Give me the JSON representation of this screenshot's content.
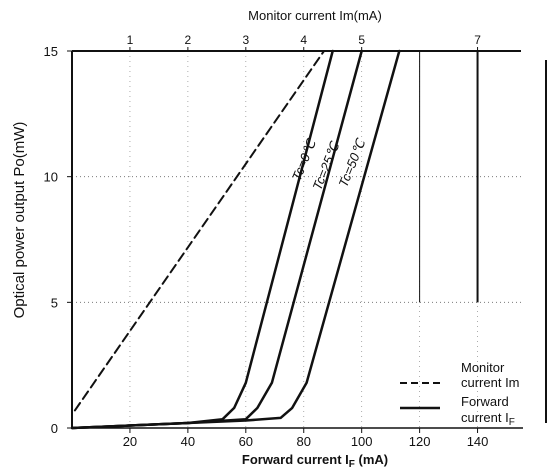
{
  "chart_data": {
    "type": "line",
    "xlabel": "Forward  current  I",
    "xlabel_sub": "F",
    "xlabel_unit": " (mA)",
    "top_label": "Monitor  current  Im(mA)",
    "ylabel": "Optical power output Po(mW)",
    "xlim": [
      0,
      155
    ],
    "ylim": [
      0,
      15
    ],
    "x_ticks": [
      20,
      40,
      60,
      80,
      100,
      120,
      140
    ],
    "y_ticks": [
      0,
      5,
      10,
      15
    ],
    "top_ticks": [
      {
        "label": "1",
        "x": 20
      },
      {
        "label": "2",
        "x": 40
      },
      {
        "label": "3",
        "x": 60
      },
      {
        "label": "4",
        "x": 80
      },
      {
        "label": "5",
        "x": 100
      },
      {
        "label": "7",
        "x": 140
      }
    ],
    "grid": true,
    "series": [
      {
        "name": "Tc=0℃",
        "style": "solid",
        "x": [
          0,
          20,
          40,
          52,
          56,
          60,
          90
        ],
        "y": [
          0,
          0.1,
          0.2,
          0.35,
          0.8,
          1.8,
          15
        ]
      },
      {
        "name": "Tc=25℃",
        "style": "solid",
        "x": [
          0,
          20,
          40,
          60,
          64,
          69,
          100
        ],
        "y": [
          0,
          0.1,
          0.2,
          0.35,
          0.8,
          1.8,
          15
        ]
      },
      {
        "name": "Tc=50℃",
        "style": "solid",
        "x": [
          0,
          20,
          40,
          60,
          72,
          76,
          81,
          113
        ],
        "y": [
          0,
          0.1,
          0.2,
          0.3,
          0.4,
          0.8,
          1.8,
          15
        ]
      },
      {
        "name": "Monitor current Im",
        "style": "dashed",
        "x": [
          1,
          87
        ],
        "y": [
          0.7,
          15
        ]
      }
    ],
    "series_labels": [
      "Tc=0℃",
      "Tc=25℃",
      "Tc=50℃"
    ],
    "legend": {
      "position": "bottom-right",
      "items": [
        {
          "line1": "Monitor",
          "line2": "current Im",
          "style": "dashed"
        },
        {
          "line1": "Forward",
          "line2": "current I",
          "sub": "F",
          "style": "solid"
        }
      ]
    }
  }
}
